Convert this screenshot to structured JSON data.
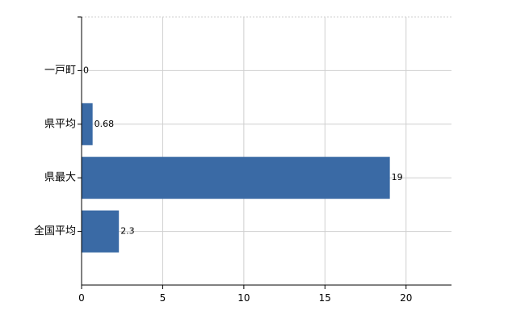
{
  "chart_data": {
    "type": "bar",
    "orientation": "horizontal",
    "categories": [
      "一戸町",
      "県平均",
      "県最大",
      "全国平均"
    ],
    "values": [
      0,
      0.68,
      19,
      2.3
    ],
    "value_labels": [
      "0",
      "0.68",
      "19",
      "2.3"
    ],
    "x_ticks": [
      "0",
      "5",
      "10",
      "15",
      "20"
    ],
    "xlim": [
      0,
      22.8
    ],
    "grid": true,
    "bar_color": "#3a6aa5"
  }
}
